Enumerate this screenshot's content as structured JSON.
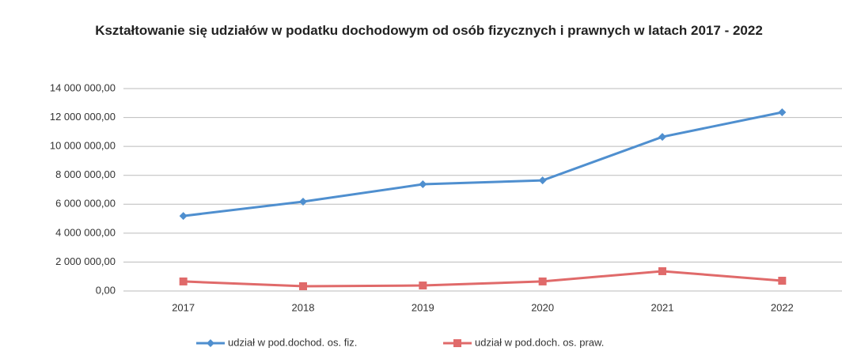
{
  "chart_data": {
    "type": "line",
    "title": "Kształtowanie się udziałów w podatku dochodowym od osób fizycznych i prawnych w latach 2017 - 2022",
    "categories": [
      "2017",
      "2018",
      "2019",
      "2020",
      "2021",
      "2022"
    ],
    "series": [
      {
        "name": "udział w pod.dochod. os. fiz.",
        "color": "#4f8fcf",
        "marker": "diamond",
        "values": [
          5190000,
          6180000,
          7380000,
          7650000,
          10660000,
          12360000
        ]
      },
      {
        "name": "udział w pod.doch. os. praw.",
        "color": "#e06a6a",
        "marker": "square",
        "values": [
          660000,
          330000,
          380000,
          660000,
          1370000,
          710000
        ]
      }
    ],
    "ylim": [
      0,
      14000000
    ],
    "yticks": [
      {
        "value": 0,
        "label": "0,00"
      },
      {
        "value": 2000000,
        "label": "2 000 000,00"
      },
      {
        "value": 4000000,
        "label": "4 000 000,00"
      },
      {
        "value": 6000000,
        "label": "6 000 000,00"
      },
      {
        "value": 8000000,
        "label": "8 000 000,00"
      },
      {
        "value": 10000000,
        "label": "10 000 000,00"
      },
      {
        "value": 12000000,
        "label": "12 000 000,00"
      },
      {
        "value": 14000000,
        "label": "14 000 000,00"
      }
    ],
    "grid": true,
    "legend": "bottom"
  }
}
